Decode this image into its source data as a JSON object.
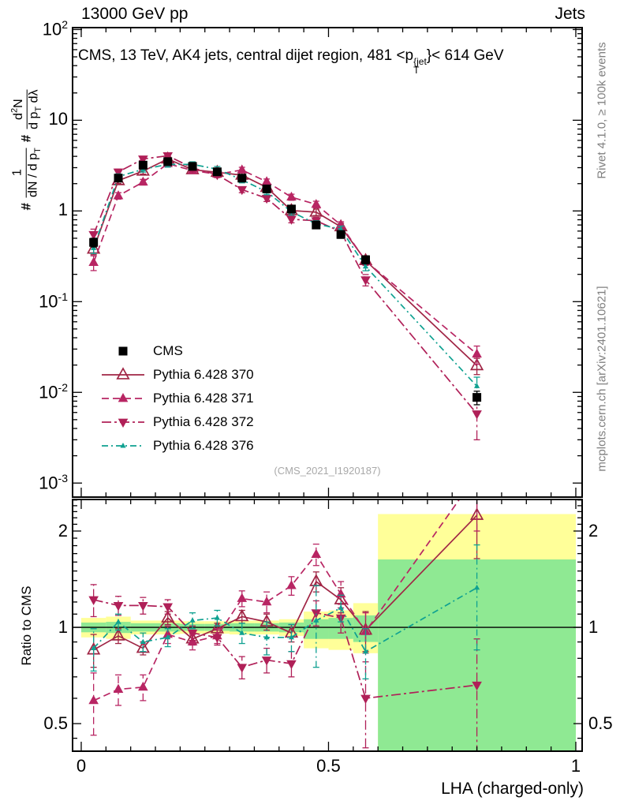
{
  "header": {
    "left": "13000 GeV pp",
    "right": "Jets"
  },
  "title": {
    "pre": "CMS, 13 TeV, AK4 jets, central dijet region, 481 <p",
    "sup": "{jet",
    "sub": "T",
    "post": "}< 614 GeV"
  },
  "ylabel": {
    "hash1": "#",
    "f1num": "1",
    "f1den_a": "dN / d p",
    "f1den_sub": "T",
    "hash2": "#",
    "f2num_a": "d",
    "f2num_sup": "2",
    "f2num_b": "N",
    "f2den_a": "d p",
    "f2den_sub": "T",
    "f2den_b": " dλ"
  },
  "side_notes": {
    "top": "Rivet 4.1.0, ≥ 100k events",
    "bottom": "mcplots.cern.ch [arXiv:2401.10621]"
  },
  "watermark": "(CMS_2021_I1920187)",
  "ratio_ylabel": "Ratio to CMS",
  "xlabel": "LHA (charged-only)",
  "legend": {
    "items": [
      {
        "label": "CMS"
      },
      {
        "label": "Pythia 6.428 370"
      },
      {
        "label": "Pythia 6.428 371"
      },
      {
        "label": "Pythia 6.428 372"
      },
      {
        "label": "Pythia 6.428 376"
      }
    ]
  },
  "chart_data": {
    "type": "line",
    "title": "CMS, 13 TeV, AK4 jets, central dijet region, 481 < pT_jet < 614 GeV",
    "xlabel": "LHA (charged-only)",
    "ylabel_top": "1/(dN/dpT) d2N/(dpT dlambda)",
    "ylabel_bottom": "Ratio to CMS",
    "legend_position": "middle-left",
    "grid": false,
    "axes": {
      "x": {
        "min": -0.0175,
        "max": 1.0128,
        "major_ticks": [
          0,
          0.5,
          1
        ],
        "minor_step": 0.05,
        "tick_labels": [
          {
            "v": 0,
            "t": "0"
          },
          {
            "v": 0.5,
            "t": "0.5"
          },
          {
            "v": 1,
            "t": "1"
          }
        ]
      },
      "y_main": {
        "log": true,
        "min": 0.0007,
        "max": 105,
        "tick_labels": [
          {
            "v": 100,
            "t": "10^2"
          },
          {
            "v": 10,
            "t": "10"
          },
          {
            "v": 1,
            "t": "1"
          },
          {
            "v": 0.1,
            "t": "10^-1"
          },
          {
            "v": 0.01,
            "t": "10^-2"
          },
          {
            "v": 0.001,
            "t": "10^-3"
          }
        ]
      },
      "y_ratio": {
        "log": true,
        "min": 0.41,
        "max": 2.51,
        "majors": [
          0.5,
          1,
          2
        ],
        "minors": [
          0.45,
          0.6,
          0.7,
          0.8,
          0.9,
          1.1,
          1.2,
          1.3,
          1.4,
          1.5,
          1.6,
          1.7,
          1.8,
          1.9,
          2.1,
          2.2,
          2.3,
          2.4,
          2.5
        ],
        "tick_labels": [
          {
            "v": 2,
            "t": "2"
          },
          {
            "v": 1,
            "t": "1"
          },
          {
            "v": 0.5,
            "t": "0.5"
          }
        ]
      }
    },
    "x": [
      0.025,
      0.075,
      0.125,
      0.175,
      0.225,
      0.275,
      0.325,
      0.375,
      0.425,
      0.475,
      0.525,
      0.575,
      0.8
    ],
    "series": [
      {
        "name": "CMS",
        "color": "#000000",
        "line": "none",
        "marker": "square-filled",
        "msize": 5.5,
        "values": [
          0.45,
          2.3,
          3.2,
          3.5,
          3.1,
          2.7,
          2.3,
          1.75,
          1.05,
          0.7,
          0.55,
          0.29,
          0.0088
        ],
        "errors": [
          0.05,
          0.15,
          0.2,
          0.2,
          0.2,
          0.17,
          0.15,
          0.12,
          0.08,
          0.06,
          0.05,
          0.03,
          0.0015
        ]
      },
      {
        "name": "Pythia 6.428 370",
        "color": "#a02545",
        "line": "solid",
        "marker": "triangle-open",
        "msize": 8,
        "values": [
          0.38,
          2.16,
          2.75,
          3.74,
          2.85,
          2.67,
          2.48,
          1.82,
          1.01,
          0.97,
          0.67,
          0.284,
          0.0197
        ],
        "errors": [
          0.05,
          0.15,
          0.2,
          0.25,
          0.2,
          0.18,
          0.17,
          0.13,
          0.08,
          0.08,
          0.06,
          0.03,
          0.004
        ]
      },
      {
        "name": "Pythia 6.428 371",
        "color": "#b82563",
        "line": "dashed",
        "marker": "triangle-filled",
        "msize": 7,
        "values": [
          0.27,
          1.47,
          2.08,
          3.32,
          2.79,
          2.54,
          2.83,
          2.1,
          1.42,
          1.18,
          0.7,
          0.281,
          0.0264
        ],
        "errors": [
          0.05,
          0.12,
          0.15,
          0.22,
          0.2,
          0.17,
          0.2,
          0.15,
          0.11,
          0.1,
          0.06,
          0.03,
          0.006
        ]
      },
      {
        "name": "Pythia 6.428 372",
        "color": "#b02058",
        "line": "dashdot",
        "marker": "triangle-down-filled",
        "msize": 7,
        "values": [
          0.55,
          2.69,
          3.74,
          4.06,
          2.98,
          2.51,
          1.72,
          1.38,
          0.81,
          0.78,
          0.59,
          0.174,
          0.0058
        ],
        "errors": [
          0.08,
          0.2,
          0.25,
          0.28,
          0.22,
          0.18,
          0.13,
          0.11,
          0.07,
          0.07,
          0.05,
          0.025,
          0.0028
        ]
      },
      {
        "name": "Pythia 6.428 376",
        "color": "#0fa191",
        "line": "dashdot2",
        "marker": "triangle-small-filled",
        "msize": 4,
        "values": [
          0.39,
          2.39,
          2.88,
          3.26,
          3.26,
          2.89,
          2.2,
          1.63,
          0.98,
          0.72,
          0.63,
          0.244,
          0.0117
        ],
        "errors": [
          0.05,
          0.17,
          0.2,
          0.22,
          0.22,
          0.2,
          0.16,
          0.12,
          0.08,
          0.06,
          0.05,
          0.025,
          0.003
        ]
      }
    ],
    "ratio": {
      "baseline": 1,
      "series": [
        {
          "name": "Pythia 6.428 370",
          "values": [
            0.85,
            0.94,
            0.86,
            1.07,
            0.92,
            0.99,
            1.08,
            1.04,
            0.96,
            1.39,
            1.22,
            0.98,
            2.24
          ],
          "errors": [
            0.1,
            0.05,
            0.04,
            0.05,
            0.04,
            0.04,
            0.05,
            0.06,
            0.06,
            0.1,
            0.11,
            0.14,
            0.6
          ]
        },
        {
          "name": "Pythia 6.428 371",
          "values": [
            0.59,
            0.64,
            0.65,
            0.95,
            0.9,
            0.94,
            1.23,
            1.2,
            1.35,
            1.69,
            1.27,
            0.97,
            3.0
          ],
          "errors": [
            0.13,
            0.07,
            0.06,
            0.06,
            0.05,
            0.05,
            0.07,
            0.09,
            0.09,
            0.13,
            0.12,
            0.14,
            1.0
          ]
        },
        {
          "name": "Pythia 6.428 372",
          "values": [
            1.22,
            1.17,
            1.17,
            1.16,
            0.96,
            0.93,
            0.75,
            0.79,
            0.77,
            1.11,
            1.07,
            0.6,
            0.66
          ],
          "errors": [
            0.14,
            0.08,
            0.07,
            0.06,
            0.05,
            0.05,
            0.06,
            0.07,
            0.07,
            0.1,
            0.11,
            0.18,
            0.26
          ]
        },
        {
          "name": "Pythia 6.428 376",
          "values": [
            0.86,
            1.04,
            0.9,
            0.93,
            1.05,
            1.07,
            0.96,
            0.93,
            0.93,
            1.05,
            1.15,
            0.84,
            1.33
          ],
          "errors": [
            0.13,
            0.06,
            0.06,
            0.06,
            0.06,
            0.06,
            0.07,
            0.11,
            0.09,
            0.3,
            0.11,
            0.15,
            0.48
          ]
        }
      ],
      "bands": [
        {
          "x0": 0.0,
          "x1": 0.05,
          "yellow": [
            0.93,
            1.07
          ],
          "green": [
            0.965,
            1.035
          ]
        },
        {
          "x0": 0.05,
          "x1": 0.1,
          "yellow": [
            0.92,
            1.08
          ],
          "green": [
            0.96,
            1.04
          ]
        },
        {
          "x0": 0.1,
          "x1": 0.15,
          "yellow": [
            0.95,
            1.05
          ],
          "green": [
            0.97,
            1.03
          ]
        },
        {
          "x0": 0.15,
          "x1": 0.2,
          "yellow": [
            0.95,
            1.05
          ],
          "green": [
            0.97,
            1.03
          ]
        },
        {
          "x0": 0.2,
          "x1": 0.25,
          "yellow": [
            0.955,
            1.045
          ],
          "green": [
            0.975,
            1.025
          ]
        },
        {
          "x0": 0.25,
          "x1": 0.3,
          "yellow": [
            0.955,
            1.045
          ],
          "green": [
            0.975,
            1.025
          ]
        },
        {
          "x0": 0.3,
          "x1": 0.35,
          "yellow": [
            0.95,
            1.05
          ],
          "green": [
            0.97,
            1.03
          ]
        },
        {
          "x0": 0.35,
          "x1": 0.4,
          "yellow": [
            0.95,
            1.05
          ],
          "green": [
            0.97,
            1.03
          ]
        },
        {
          "x0": 0.4,
          "x1": 0.45,
          "yellow": [
            0.94,
            1.06
          ],
          "green": [
            0.965,
            1.035
          ]
        },
        {
          "x0": 0.45,
          "x1": 0.5,
          "yellow": [
            0.86,
            1.12
          ],
          "green": [
            0.92,
            1.06
          ]
        },
        {
          "x0": 0.5,
          "x1": 0.55,
          "yellow": [
            0.85,
            1.13
          ],
          "green": [
            0.92,
            1.07
          ]
        },
        {
          "x0": 0.55,
          "x1": 0.6,
          "yellow": [
            0.83,
            1.19
          ],
          "green": [
            0.9,
            1.09
          ]
        },
        {
          "x0": 0.6,
          "x1": 1.0,
          "yellow": [
            0.41,
            2.26
          ],
          "green": [
            0.41,
            1.63
          ]
        }
      ],
      "band_colors": {
        "yellow": "#ffff99",
        "green": "#8fe993"
      }
    }
  }
}
